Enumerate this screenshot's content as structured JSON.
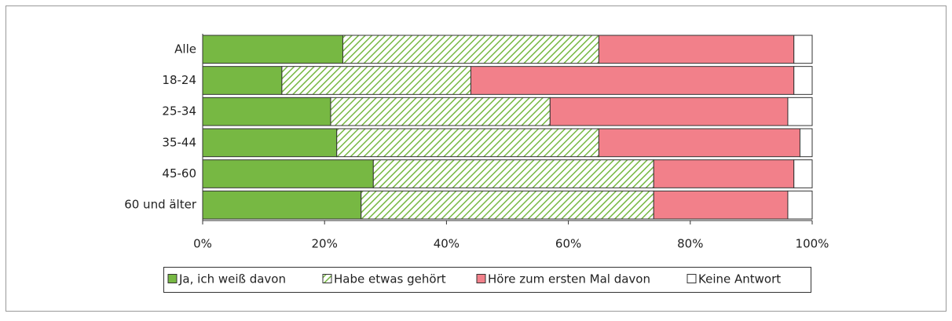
{
  "chart_data": {
    "type": "stacked_barh",
    "categories": [
      "Alle",
      "18-24",
      "25-34",
      "35-44",
      "45-60",
      "60 und älter"
    ],
    "series": [
      {
        "name": "Ja, ich weiß davon",
        "color": "#77b843",
        "values": [
          23,
          13,
          21,
          22,
          28,
          26
        ]
      },
      {
        "name": "Habe etwas gehört",
        "color": "#77b843",
        "hatch": true,
        "values": [
          42,
          31,
          36,
          43,
          46,
          48
        ]
      },
      {
        "name": "Höre zum ersten Mal davon",
        "color": "#f2808a",
        "values": [
          32,
          53,
          39,
          33,
          23,
          22
        ]
      },
      {
        "name": "Keine Antwort",
        "color": "#ffffff",
        "values": [
          3,
          3,
          4,
          2,
          3,
          4
        ]
      }
    ],
    "xlim": [
      0,
      100
    ],
    "xticks": [
      {
        "value": 0,
        "label": "0%"
      },
      {
        "value": 20,
        "label": "20%"
      },
      {
        "value": 40,
        "label": "40%"
      },
      {
        "value": 60,
        "label": "60%"
      },
      {
        "value": 80,
        "label": "80%"
      },
      {
        "value": 100,
        "label": "100%"
      }
    ],
    "legend": "bottom"
  }
}
